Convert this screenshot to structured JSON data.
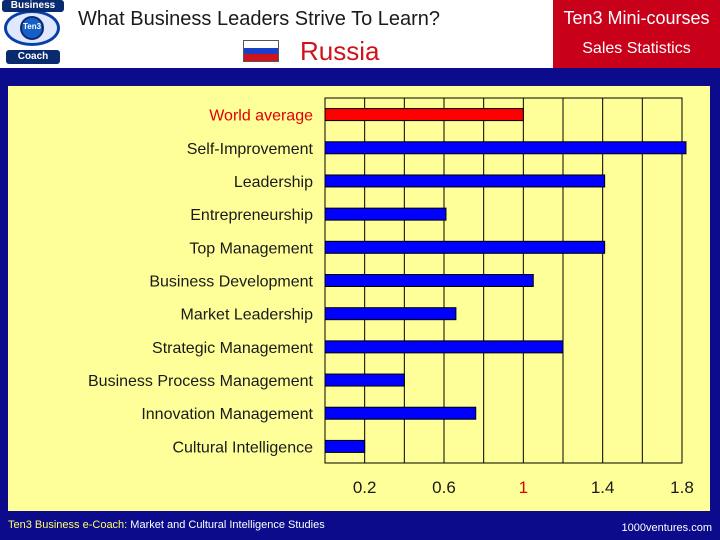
{
  "header": {
    "logo_top": "Business",
    "logo_mid": "Ten3",
    "logo_bottom": "Coach",
    "title": "What Business Leaders Strive To Learn?",
    "country": "Russia",
    "series_title": "Ten3 Mini-courses",
    "series_subtitle": "Sales Statistics"
  },
  "footer": {
    "brand": "Ten3 Business e-Coach:",
    "subtitle": " Market and Cultural Intelligence Studies",
    "site": "1000ventures.com"
  },
  "colors": {
    "background": "#0b0b8c",
    "panel": "#ffff99",
    "bar": "#0000ff",
    "highlight": "#ff0000",
    "header_red": "#c8001a"
  },
  "chart_data": {
    "type": "bar",
    "orientation": "horizontal",
    "categories": [
      "World average",
      "Self-Improvement",
      "Leadership",
      "Entrepreneurship",
      "Top Management",
      "Business Development",
      "Market Leadership",
      "Strategic Management",
      "Business Process Management",
      "Innovation Management",
      "Cultural Intelligence"
    ],
    "values": [
      1.0,
      1.82,
      1.41,
      0.61,
      1.41,
      1.05,
      0.66,
      1.2,
      0.4,
      0.76,
      0.2
    ],
    "highlight": "World average",
    "xlim": [
      0,
      1.8
    ],
    "xticks": [
      "0.2",
      "0.6",
      "1",
      "1.4",
      "1.8"
    ],
    "grid": true
  }
}
